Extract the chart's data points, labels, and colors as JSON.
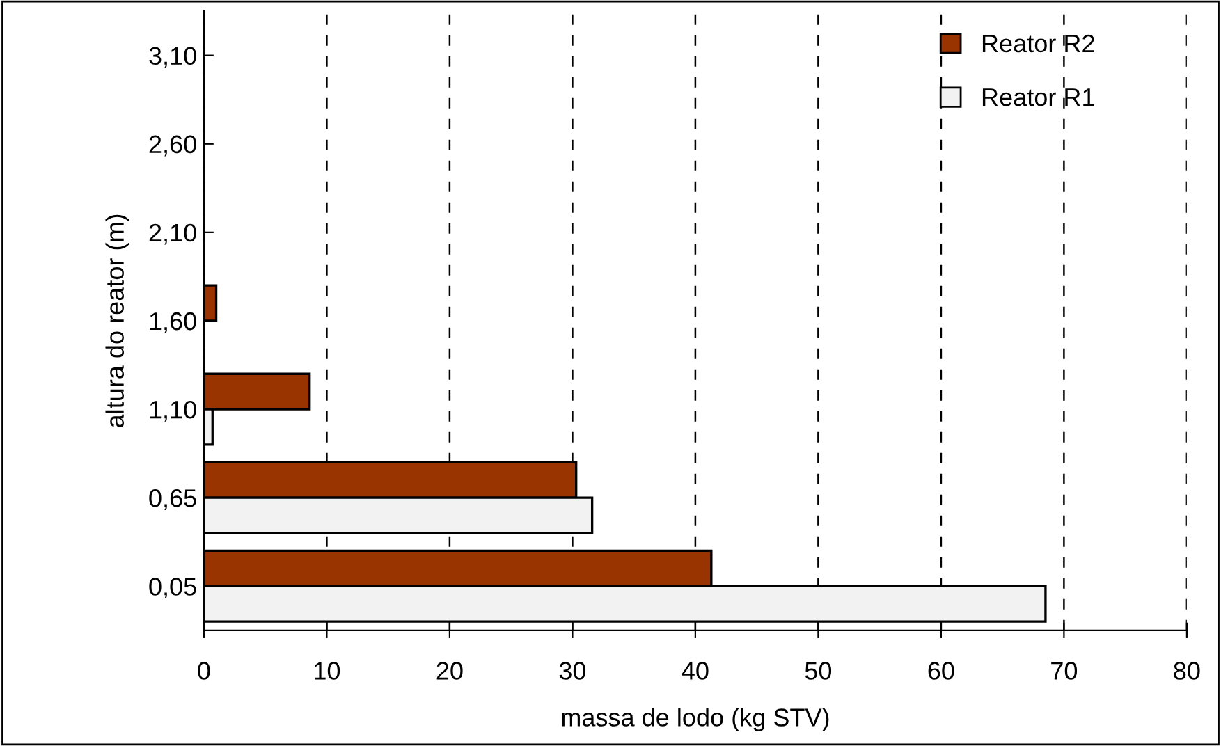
{
  "chart_data": {
    "type": "bar",
    "orientation": "horizontal",
    "xlabel": "massa de lodo (kg STV)",
    "ylabel": "altura do reator (m)",
    "categories": [
      "3,10",
      "2,60",
      "2,10",
      "1,60",
      "1,10",
      "0,65",
      "0,05"
    ],
    "series": [
      {
        "name": "Reator R2",
        "color": "#993300",
        "values": [
          null,
          null,
          null,
          1.0,
          8.6,
          30.3,
          41.3
        ]
      },
      {
        "name": "Reator R1",
        "color": "#f2f2f2",
        "values": [
          null,
          null,
          null,
          null,
          0.7,
          31.6,
          68.5
        ]
      }
    ],
    "xlim": [
      0,
      80
    ],
    "xticks": [
      0,
      10,
      20,
      30,
      40,
      50,
      60,
      70,
      80
    ],
    "grid": "x",
    "legend": "top right"
  }
}
